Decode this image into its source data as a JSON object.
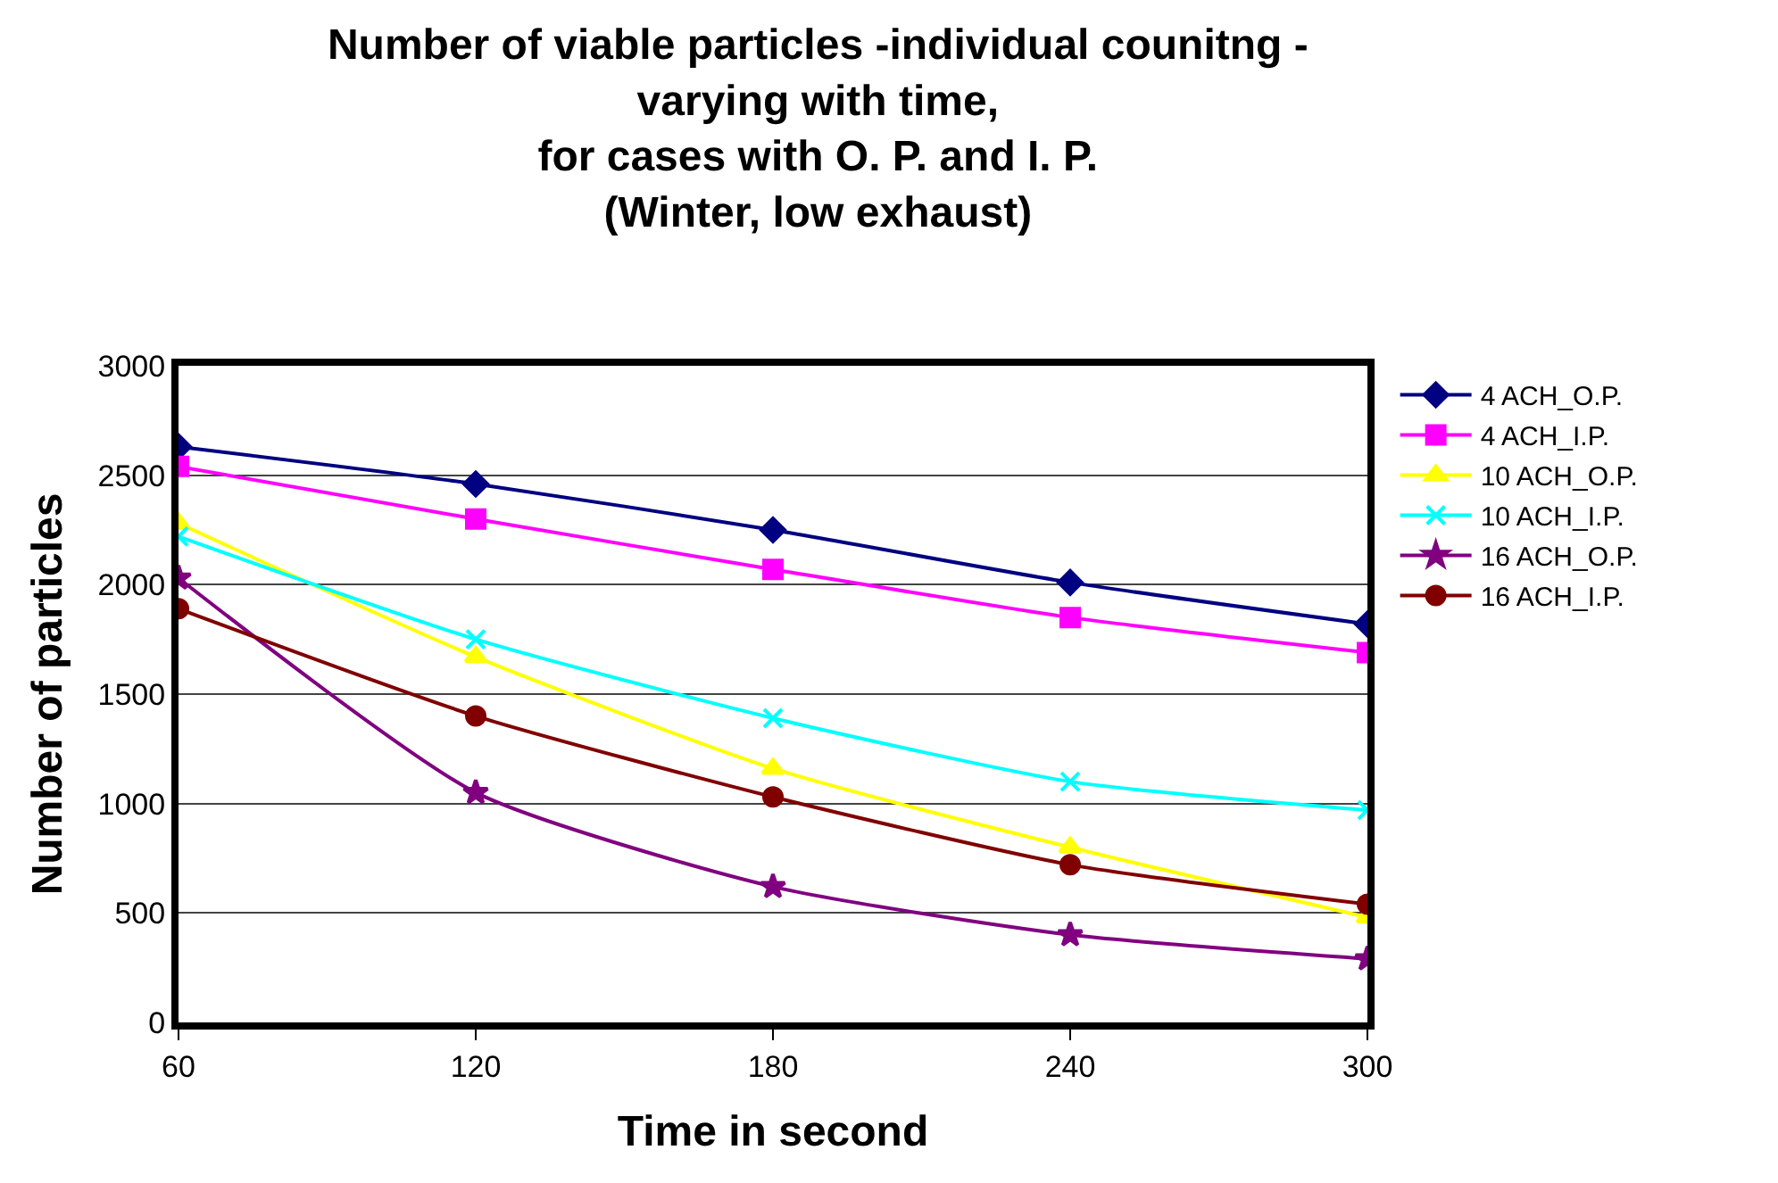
{
  "chart_data": {
    "type": "line",
    "title": "Number of viable particles -individual counitng -\nvarying with time,\nfor cases with O. P. and I. P.\n(Winter, low exhaust)",
    "xlabel": "Time in second",
    "ylabel": "Number of particles",
    "categories": [
      "60",
      "120",
      "180",
      "240",
      "300"
    ],
    "series": [
      {
        "name": "4 ACH_O.P.",
        "color": "#000080",
        "marker": "diamond",
        "values": [
          2630,
          2460,
          2250,
          2010,
          1820
        ]
      },
      {
        "name": "4 ACH_I.P.",
        "color": "#ff00ff",
        "marker": "square",
        "values": [
          2540,
          2300,
          2070,
          1850,
          1690
        ]
      },
      {
        "name": "10 ACH_O.P.",
        "color": "#ffff00",
        "marker": "triangle",
        "values": [
          2280,
          1670,
          1160,
          800,
          480
        ]
      },
      {
        "name": "10 ACH_I.P.",
        "color": "#00ffff",
        "marker": "cross",
        "values": [
          2220,
          1750,
          1390,
          1100,
          970
        ]
      },
      {
        "name": "16 ACH_O.P.",
        "color": "#800080",
        "marker": "star",
        "values": [
          2030,
          1050,
          620,
          400,
          290
        ]
      },
      {
        "name": "16 ACH_I.P.",
        "color": "#800000",
        "marker": "circle",
        "values": [
          1890,
          1400,
          1030,
          720,
          540
        ]
      }
    ],
    "ylim": [
      0,
      3000
    ],
    "yticks": [
      0,
      500,
      1000,
      1500,
      2000,
      2500,
      3000
    ],
    "grid": "y",
    "legend": "right"
  }
}
